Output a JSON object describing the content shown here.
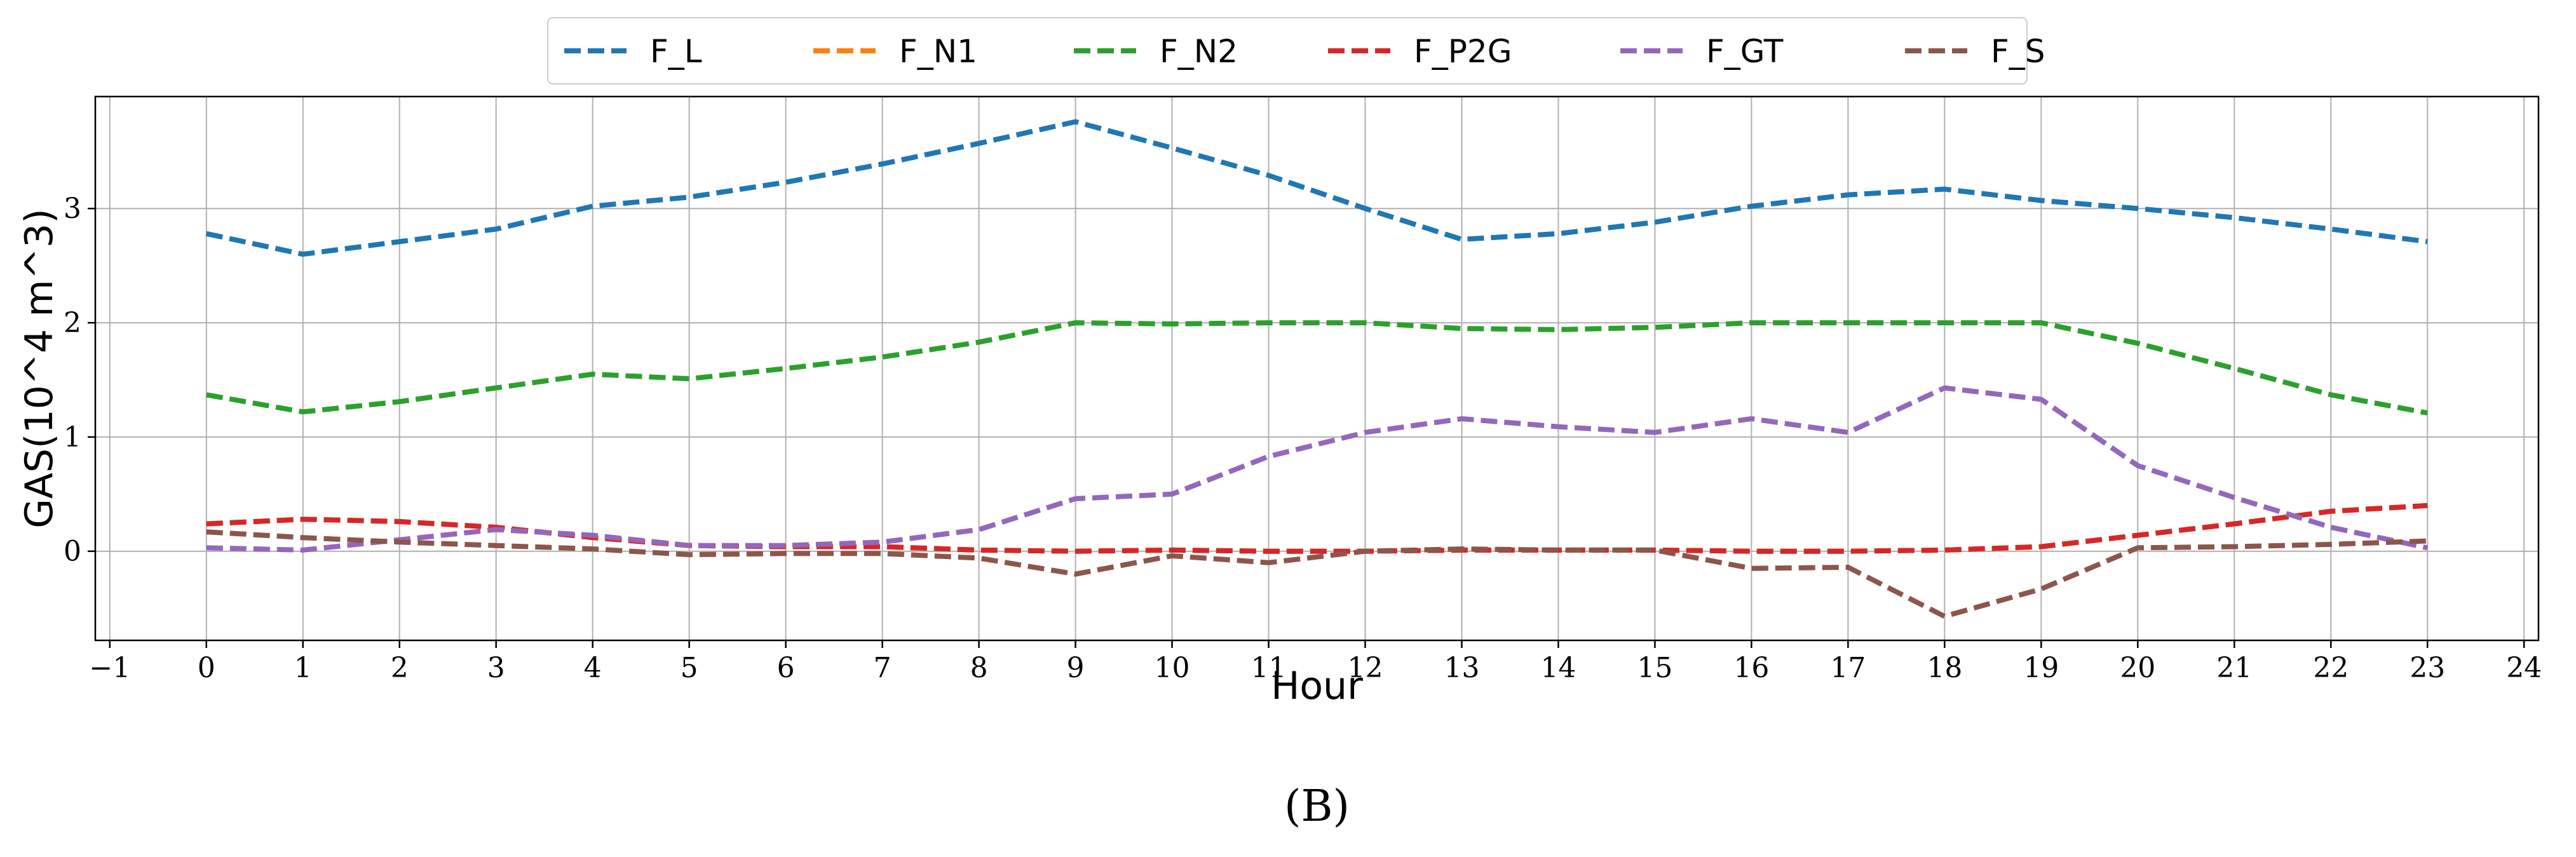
{
  "chart_data": {
    "type": "line",
    "title": "",
    "xlabel": "Hour",
    "ylabel": "GAS(10^4 m^3)",
    "caption": "(B)",
    "xlim": [
      -1.15,
      24.15
    ],
    "ylim": [
      -0.78,
      3.98
    ],
    "xticks": [
      -1,
      0,
      1,
      2,
      3,
      4,
      5,
      6,
      7,
      8,
      9,
      10,
      11,
      12,
      13,
      14,
      15,
      16,
      17,
      18,
      19,
      20,
      21,
      22,
      23,
      24
    ],
    "xtick_labels": [
      "−1",
      "0",
      "1",
      "2",
      "3",
      "4",
      "5",
      "6",
      "7",
      "8",
      "9",
      "10",
      "11",
      "12",
      "13",
      "14",
      "15",
      "16",
      "17",
      "18",
      "19",
      "20",
      "21",
      "22",
      "23",
      "24"
    ],
    "yticks": [
      0,
      1,
      2,
      3
    ],
    "ytick_labels": [
      "0",
      "1",
      "2",
      "3"
    ],
    "grid": true,
    "legend_position": "top-center",
    "x": [
      0,
      1,
      2,
      3,
      4,
      5,
      6,
      7,
      8,
      9,
      10,
      11,
      12,
      13,
      14,
      15,
      16,
      17,
      18,
      19,
      20,
      21,
      22,
      23
    ],
    "series": [
      {
        "name": "F_L",
        "color": "#1f77b4",
        "values": [
          2.78,
          2.6,
          2.71,
          2.82,
          3.02,
          3.1,
          3.23,
          3.39,
          3.57,
          3.76,
          3.53,
          3.29,
          3.0,
          2.73,
          2.78,
          2.88,
          3.02,
          3.12,
          3.17,
          3.07,
          3.0,
          2.92,
          2.82,
          2.71
        ]
      },
      {
        "name": "F_N1",
        "color": "#ff7f0e",
        "values": [
          0.24,
          0.28,
          0.26,
          0.21,
          0.12,
          0.05,
          0.04,
          0.04,
          0.01,
          0.0,
          0.01,
          0.0,
          0.0,
          0.01,
          0.01,
          0.01,
          0.0,
          0.0,
          0.01,
          0.04,
          0.14,
          0.24,
          0.35,
          0.4
        ]
      },
      {
        "name": "F_N2",
        "color": "#2ca02c",
        "values": [
          1.37,
          1.22,
          1.31,
          1.43,
          1.55,
          1.51,
          1.6,
          1.7,
          1.83,
          2.0,
          1.99,
          2.0,
          2.0,
          1.95,
          1.94,
          1.96,
          2.0,
          2.0,
          2.0,
          2.0,
          1.82,
          1.6,
          1.37,
          1.21
        ]
      },
      {
        "name": "F_P2G",
        "color": "#d62728",
        "values": [
          0.24,
          0.28,
          0.26,
          0.21,
          0.12,
          0.05,
          0.04,
          0.04,
          0.01,
          0.0,
          0.01,
          0.0,
          0.0,
          0.01,
          0.01,
          0.01,
          0.0,
          0.0,
          0.01,
          0.04,
          0.14,
          0.24,
          0.35,
          0.4
        ]
      },
      {
        "name": "F_GT",
        "color": "#9467bd",
        "values": [
          0.03,
          0.01,
          0.1,
          0.19,
          0.14,
          0.05,
          0.05,
          0.08,
          0.19,
          0.46,
          0.5,
          0.83,
          1.04,
          1.16,
          1.09,
          1.04,
          1.16,
          1.04,
          1.43,
          1.33,
          0.75,
          0.47,
          0.21,
          0.03
        ]
      },
      {
        "name": "F_S",
        "color": "#8c564b",
        "values": [
          0.17,
          0.12,
          0.08,
          0.05,
          0.02,
          -0.03,
          -0.02,
          -0.02,
          -0.06,
          -0.2,
          -0.04,
          -0.1,
          0.0,
          0.02,
          0.01,
          0.01,
          -0.15,
          -0.14,
          -0.57,
          -0.33,
          0.03,
          0.04,
          0.06,
          0.09
        ]
      }
    ]
  }
}
